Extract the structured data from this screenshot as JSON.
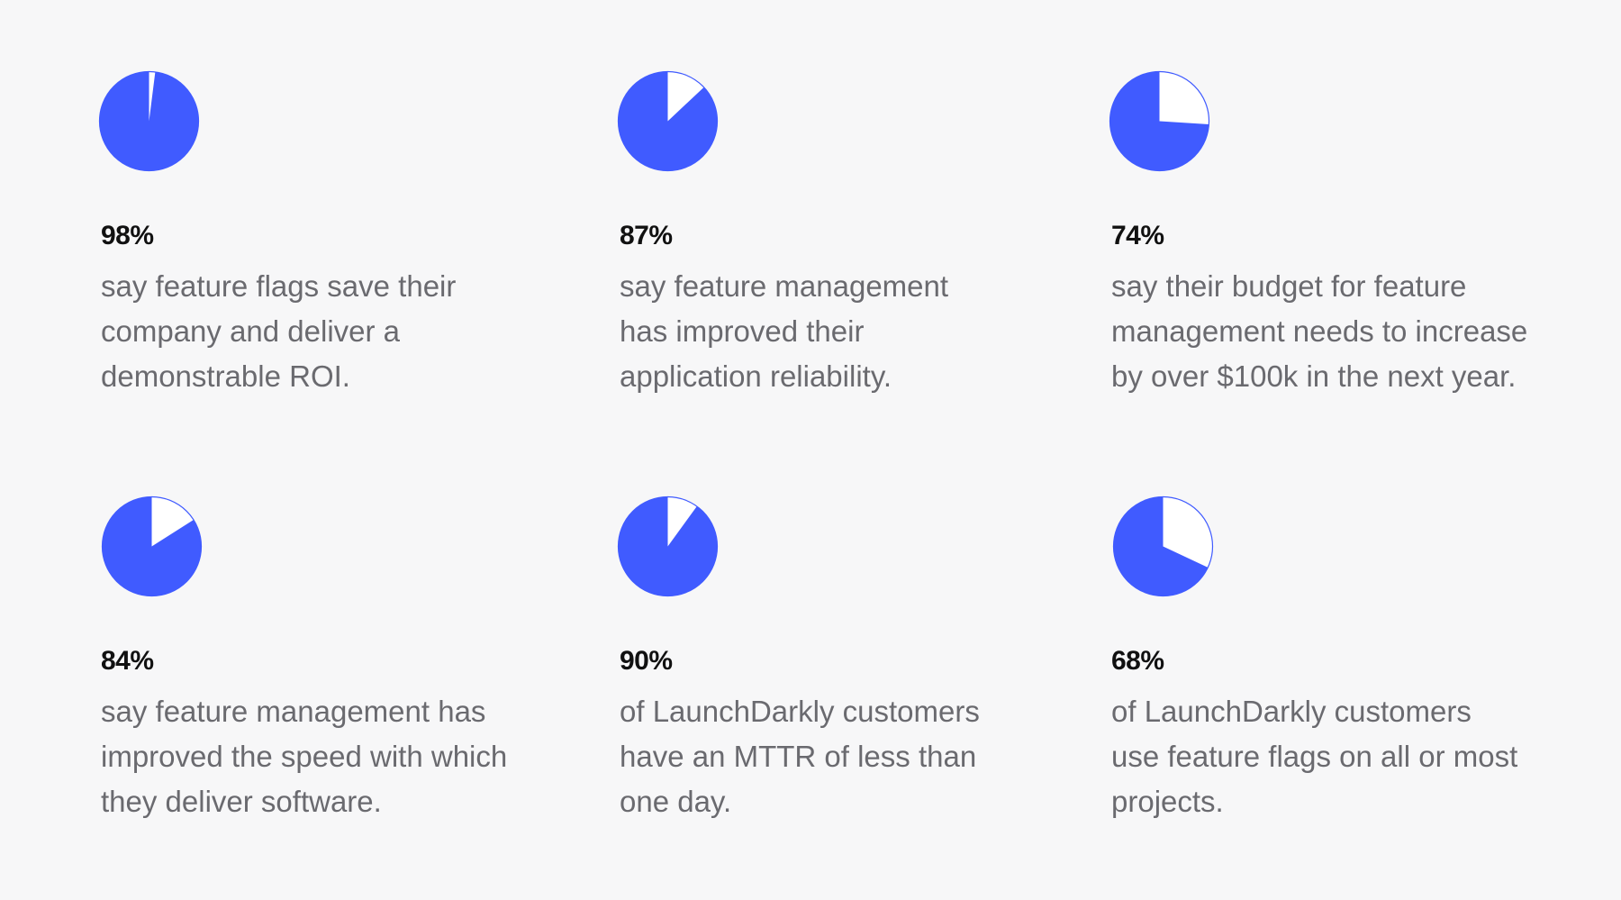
{
  "colors": {
    "background": "#f7f7f8",
    "pie_fill": "#405bff",
    "pie_remainder": "#ffffff",
    "percent_text": "#111111",
    "description_text": "#6a6a6f"
  },
  "chart_data": [
    {
      "type": "pie",
      "values": [
        98,
        2
      ],
      "label": "98%",
      "description": "say feature flags save their company and deliver a demonstrable ROI."
    },
    {
      "type": "pie",
      "values": [
        87,
        13
      ],
      "label": "87%",
      "description": "say feature management has improved their application reliability."
    },
    {
      "type": "pie",
      "values": [
        74,
        26
      ],
      "label": "74%",
      "description": "say their budget for feature management needs to increase by over $100k in the next year."
    },
    {
      "type": "pie",
      "values": [
        84,
        16
      ],
      "label": "84%",
      "description": "say feature management has improved the speed with which they deliver software."
    },
    {
      "type": "pie",
      "values": [
        90,
        10
      ],
      "label": "90%",
      "description": "of LaunchDarkly customers have an MTTR of less than one day."
    },
    {
      "type": "pie",
      "values": [
        68,
        32
      ],
      "label": "68%",
      "description": "of LaunchDarkly customers use feature flags on all or most projects."
    }
  ]
}
